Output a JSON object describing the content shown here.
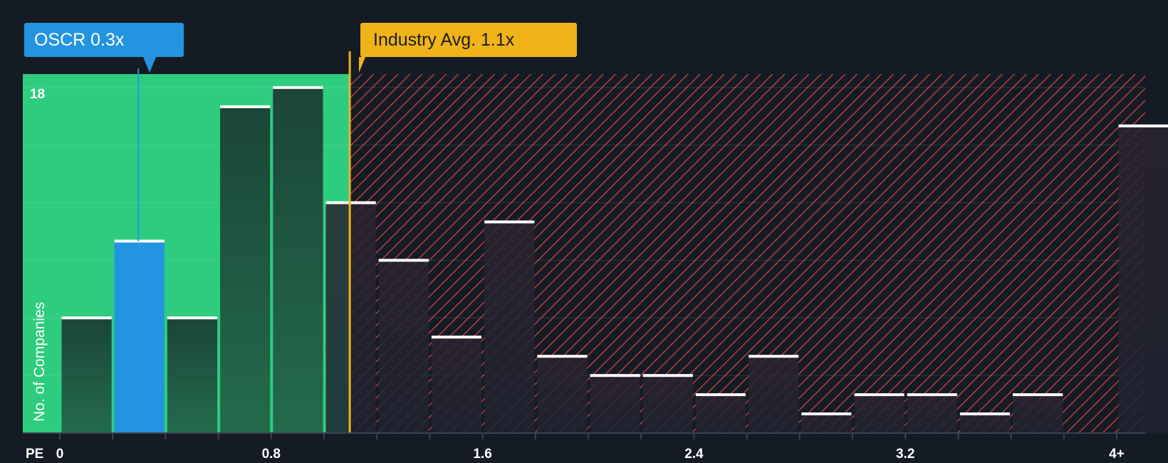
{
  "chart_data": {
    "type": "bar",
    "xlabel": "PE",
    "ylabel": "No. of Companies",
    "y_tick_labels": [
      "18"
    ],
    "ylim": [
      0,
      18.7
    ],
    "x_tick_labels": [
      "0",
      "0.8",
      "1.6",
      "2.4",
      "3.2",
      "4+"
    ],
    "x_tick_values": [
      0,
      0.8,
      1.6,
      2.4,
      3.2,
      4.0
    ],
    "bin_width": 0.2,
    "bins": [
      {
        "x": 0.0,
        "value": 6
      },
      {
        "x": 0.2,
        "value": 10
      },
      {
        "x": 0.4,
        "value": 6
      },
      {
        "x": 0.6,
        "value": 17
      },
      {
        "x": 0.8,
        "value": 18
      },
      {
        "x": 1.0,
        "value": 12
      },
      {
        "x": 1.2,
        "value": 9
      },
      {
        "x": 1.4,
        "value": 5
      },
      {
        "x": 1.6,
        "value": 11
      },
      {
        "x": 1.8,
        "value": 4
      },
      {
        "x": 2.0,
        "value": 3
      },
      {
        "x": 2.2,
        "value": 3
      },
      {
        "x": 2.4,
        "value": 2
      },
      {
        "x": 2.6,
        "value": 4
      },
      {
        "x": 2.8,
        "value": 1
      },
      {
        "x": 3.0,
        "value": 2
      },
      {
        "x": 3.2,
        "value": 2
      },
      {
        "x": 3.4,
        "value": 1
      },
      {
        "x": 3.6,
        "value": 2
      },
      {
        "x": 3.8,
        "value": 0
      },
      {
        "x": 4.0,
        "value": 16
      }
    ],
    "company": {
      "label": "OSCR 0.3x",
      "value": 0.3,
      "bin_x": 0.2
    },
    "industry": {
      "label": "Industry Avg. 1.1x",
      "value": 1.1
    },
    "fair_zone_end": 1.1,
    "colors": {
      "background": "#151b24",
      "fair_zone": "#2ecc7f",
      "company": "#2394e0",
      "industry": "#f0b41a",
      "overvalued_hatch": "#d64444",
      "bar_top": "#ffffff"
    }
  }
}
